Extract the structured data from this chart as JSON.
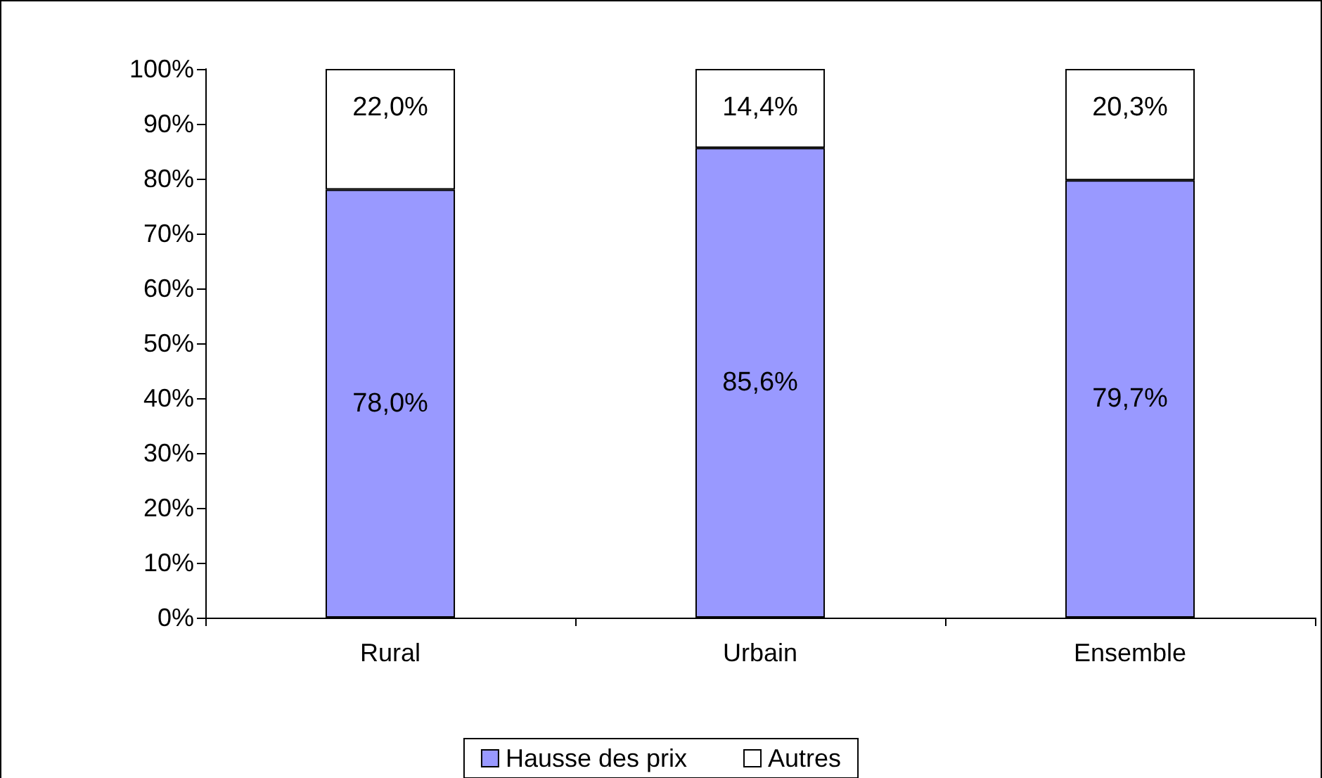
{
  "chart_data": {
    "type": "bar",
    "stacked": true,
    "categories": [
      "Rural",
      "Urbain",
      "Ensemble"
    ],
    "series": [
      {
        "name": "Hausse des prix",
        "color": "#9999ff",
        "values": [
          78.0,
          85.6,
          79.7
        ],
        "value_labels": [
          "78,0%",
          "85,6%",
          "79,7%"
        ]
      },
      {
        "name": "Autres",
        "color": "#ffffff",
        "values": [
          22.0,
          14.4,
          20.3
        ],
        "value_labels": [
          "22,0%",
          "14,4%",
          "20,3%"
        ]
      }
    ],
    "ylim": [
      0,
      100
    ],
    "yticks": [
      {
        "value": 0,
        "label": "0%"
      },
      {
        "value": 10,
        "label": "10%"
      },
      {
        "value": 20,
        "label": "20%"
      },
      {
        "value": 30,
        "label": "30%"
      },
      {
        "value": 40,
        "label": "40%"
      },
      {
        "value": 50,
        "label": "50%"
      },
      {
        "value": 60,
        "label": "60%"
      },
      {
        "value": 70,
        "label": "70%"
      },
      {
        "value": 80,
        "label": "80%"
      },
      {
        "value": 90,
        "label": "90%"
      },
      {
        "value": 100,
        "label": "100%"
      }
    ],
    "grid": false,
    "legend": "bottom"
  }
}
